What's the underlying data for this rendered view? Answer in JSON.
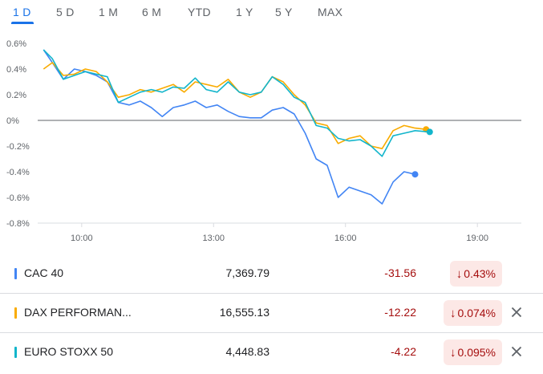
{
  "tabs": [
    {
      "label": "1 D",
      "active": true
    },
    {
      "label": "5 D",
      "active": false
    },
    {
      "label": "1 M",
      "active": false
    },
    {
      "label": "6 M",
      "active": false
    },
    {
      "label": "YTD",
      "active": false
    },
    {
      "label": "1 Y",
      "active": false
    },
    {
      "label": "5 Y",
      "active": false
    },
    {
      "label": "MAX",
      "active": false
    }
  ],
  "chart_data": {
    "type": "line",
    "x_label": "",
    "y_label": "",
    "x_ticks": [
      "10:00",
      "13:00",
      "16:00",
      "19:00"
    ],
    "y_ticks": [
      "0.6%",
      "0.4%",
      "0.2%",
      "0%",
      "-0.2%",
      "-0.4%",
      "-0.6%",
      "-0.8%"
    ],
    "y_range": [
      -0.8,
      0.6
    ],
    "x_range": [
      "09:00",
      "20:00"
    ],
    "baseline": 0,
    "series": [
      {
        "name": "CAC 40",
        "color": "#4285f4",
        "points": [
          [
            "09:08",
            0.55
          ],
          [
            "09:20",
            0.45
          ],
          [
            "09:35",
            0.32
          ],
          [
            "09:50",
            0.4
          ],
          [
            "10:05",
            0.38
          ],
          [
            "10:20",
            0.35
          ],
          [
            "10:35",
            0.3
          ],
          [
            "10:50",
            0.14
          ],
          [
            "11:05",
            0.12
          ],
          [
            "11:20",
            0.15
          ],
          [
            "11:35",
            0.1
          ],
          [
            "11:50",
            0.03
          ],
          [
            "12:05",
            0.1
          ],
          [
            "12:20",
            0.12
          ],
          [
            "12:35",
            0.15
          ],
          [
            "12:50",
            0.1
          ],
          [
            "13:05",
            0.12
          ],
          [
            "13:20",
            0.07
          ],
          [
            "13:35",
            0.03
          ],
          [
            "13:50",
            0.02
          ],
          [
            "14:05",
            0.02
          ],
          [
            "14:20",
            0.08
          ],
          [
            "14:35",
            0.1
          ],
          [
            "14:50",
            0.05
          ],
          [
            "15:05",
            -0.1
          ],
          [
            "15:20",
            -0.3
          ],
          [
            "15:35",
            -0.35
          ],
          [
            "15:50",
            -0.6
          ],
          [
            "16:05",
            -0.52
          ],
          [
            "16:20",
            -0.55
          ],
          [
            "16:35",
            -0.58
          ],
          [
            "16:50",
            -0.65
          ],
          [
            "17:05",
            -0.48
          ],
          [
            "17:20",
            -0.4
          ],
          [
            "17:35",
            -0.42
          ]
        ],
        "marker_last": true
      },
      {
        "name": "DAX PERFORMAN...",
        "color": "#f9ab00",
        "points": [
          [
            "09:08",
            0.4
          ],
          [
            "09:20",
            0.45
          ],
          [
            "09:35",
            0.35
          ],
          [
            "09:50",
            0.36
          ],
          [
            "10:05",
            0.4
          ],
          [
            "10:20",
            0.38
          ],
          [
            "10:35",
            0.3
          ],
          [
            "10:50",
            0.18
          ],
          [
            "11:05",
            0.2
          ],
          [
            "11:20",
            0.24
          ],
          [
            "11:35",
            0.22
          ],
          [
            "11:50",
            0.25
          ],
          [
            "12:05",
            0.28
          ],
          [
            "12:20",
            0.22
          ],
          [
            "12:35",
            0.3
          ],
          [
            "12:50",
            0.28
          ],
          [
            "13:05",
            0.26
          ],
          [
            "13:20",
            0.32
          ],
          [
            "13:35",
            0.22
          ],
          [
            "13:50",
            0.18
          ],
          [
            "14:05",
            0.22
          ],
          [
            "14:20",
            0.34
          ],
          [
            "14:35",
            0.3
          ],
          [
            "14:50",
            0.2
          ],
          [
            "15:05",
            0.12
          ],
          [
            "15:20",
            -0.02
          ],
          [
            "15:35",
            -0.04
          ],
          [
            "15:50",
            -0.18
          ],
          [
            "16:05",
            -0.14
          ],
          [
            "16:20",
            -0.12
          ],
          [
            "16:35",
            -0.2
          ],
          [
            "16:50",
            -0.22
          ],
          [
            "17:05",
            -0.08
          ],
          [
            "17:20",
            -0.04
          ],
          [
            "17:35",
            -0.06
          ],
          [
            "17:50",
            -0.07
          ]
        ],
        "marker_last": true
      },
      {
        "name": "EURO STOXX 50",
        "color": "#12b5cb",
        "points": [
          [
            "09:08",
            0.55
          ],
          [
            "09:20",
            0.48
          ],
          [
            "09:35",
            0.32
          ],
          [
            "09:50",
            0.35
          ],
          [
            "10:05",
            0.38
          ],
          [
            "10:20",
            0.36
          ],
          [
            "10:35",
            0.34
          ],
          [
            "10:50",
            0.14
          ],
          [
            "11:05",
            0.18
          ],
          [
            "11:20",
            0.22
          ],
          [
            "11:35",
            0.24
          ],
          [
            "11:50",
            0.22
          ],
          [
            "12:05",
            0.26
          ],
          [
            "12:20",
            0.25
          ],
          [
            "12:35",
            0.33
          ],
          [
            "12:50",
            0.24
          ],
          [
            "13:05",
            0.22
          ],
          [
            "13:20",
            0.3
          ],
          [
            "13:35",
            0.22
          ],
          [
            "13:50",
            0.2
          ],
          [
            "14:05",
            0.22
          ],
          [
            "14:20",
            0.34
          ],
          [
            "14:35",
            0.28
          ],
          [
            "14:50",
            0.18
          ],
          [
            "15:05",
            0.14
          ],
          [
            "15:20",
            -0.04
          ],
          [
            "15:35",
            -0.06
          ],
          [
            "15:50",
            -0.14
          ],
          [
            "16:05",
            -0.16
          ],
          [
            "16:20",
            -0.15
          ],
          [
            "16:35",
            -0.2
          ],
          [
            "16:50",
            -0.28
          ],
          [
            "17:05",
            -0.12
          ],
          [
            "17:20",
            -0.1
          ],
          [
            "17:35",
            -0.08
          ],
          [
            "17:55",
            -0.09
          ]
        ],
        "marker_last": true
      }
    ]
  },
  "rows": [
    {
      "name": "CAC 40",
      "color": "#4285f4",
      "price": "7,369.79",
      "change": "-31.56",
      "pct": "0.43%",
      "arrow": "↓",
      "removable": false
    },
    {
      "name": "DAX PERFORMAN...",
      "color": "#f9ab00",
      "price": "16,555.13",
      "change": "-12.22",
      "pct": "0.074%",
      "arrow": "↓",
      "removable": true
    },
    {
      "name": "EURO STOXX 50",
      "color": "#12b5cb",
      "price": "4,448.83",
      "change": "-4.22",
      "pct": "0.095%",
      "arrow": "↓",
      "removable": true
    }
  ]
}
